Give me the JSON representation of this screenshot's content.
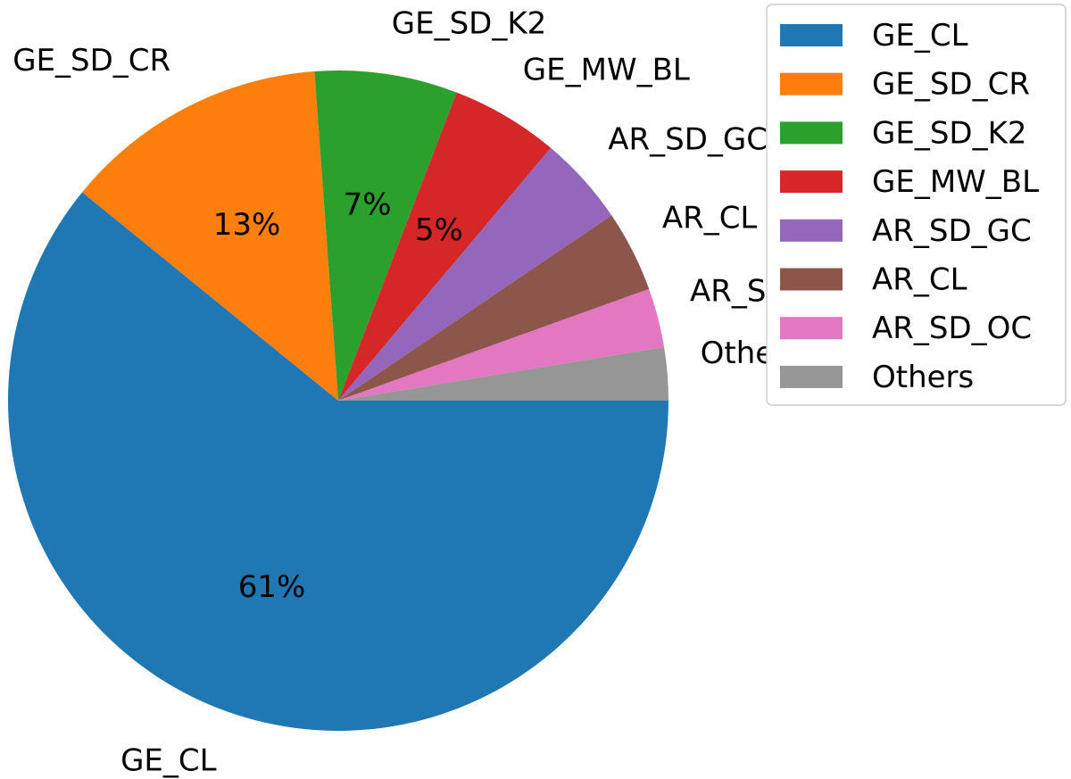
{
  "chart_data": {
    "type": "pie",
    "title": "",
    "start_angle_deg": 0,
    "direction": "clockwise-on-screen",
    "legend_placement": "upper-right",
    "slices": [
      {
        "label": "GE_CL",
        "value": 61.0,
        "pct_label": "61%",
        "color": "#1f77b4"
      },
      {
        "label": "GE_SD_CR",
        "value": 13.0,
        "pct_label": "13%",
        "color": "#ff7f0e"
      },
      {
        "label": "GE_SD_K2",
        "value": 7.0,
        "pct_label": "7%",
        "color": "#2ca02c"
      },
      {
        "label": "GE_MW_BL",
        "value": 5.3,
        "pct_label": "5%",
        "color": "#d62728"
      },
      {
        "label": "AR_SD_GC",
        "value": 4.4,
        "pct_label": "",
        "color": "#9467bd"
      },
      {
        "label": "AR_CL",
        "value": 4.0,
        "pct_label": "",
        "color": "#8c564b"
      },
      {
        "label": "AR_SD_OC",
        "value": 2.9,
        "pct_label": "",
        "color": "#e377c2"
      },
      {
        "label": "Others",
        "value": 2.6,
        "pct_label": "",
        "color": "#969696"
      }
    ],
    "legend": [
      "GE_CL",
      "GE_SD_CR",
      "GE_SD_K2",
      "GE_MW_BL",
      "AR_SD_GC",
      "AR_CL",
      "AR_SD_OC",
      "Others"
    ]
  }
}
